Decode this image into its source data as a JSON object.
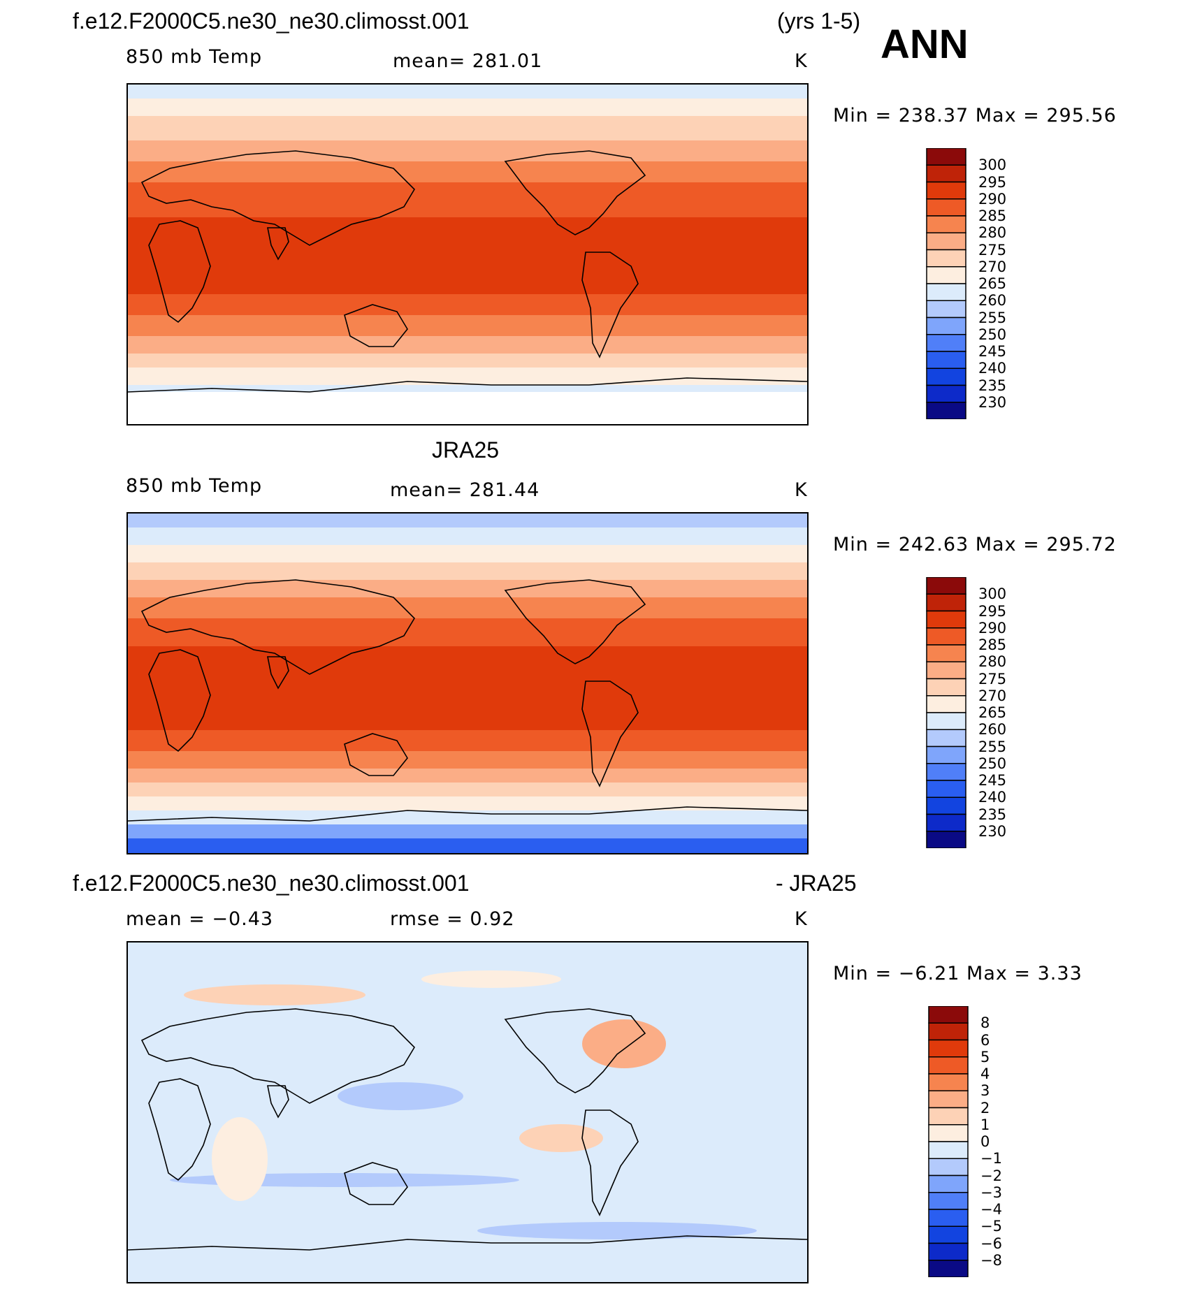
{
  "season": "ANN",
  "colors": {
    "abs": [
      "#0a0a85",
      "#0d2ac9",
      "#1244e0",
      "#2a5ef0",
      "#507ff8",
      "#7fa5fb",
      "#b3cafc",
      "#dcebfb",
      "#fdeee0",
      "#fdd2b6",
      "#fbad86",
      "#f6844f",
      "#ee5a26",
      "#e03a0b",
      "#bf2308",
      "#8b0a0a"
    ],
    "diff": [
      "#0a0a85",
      "#0d2ac9",
      "#1244e0",
      "#2a5ef0",
      "#507ff8",
      "#7fa5fb",
      "#b3cafc",
      "#dcebfb",
      "#fdeee0",
      "#fdd2b6",
      "#fbad86",
      "#f6844f",
      "#ee5a26",
      "#e03a0b",
      "#bf2308",
      "#8b0a0a"
    ]
  },
  "panels": [
    {
      "title_left": "f.e12.F2000C5.ne30_ne30.climosst.001",
      "title_right": "(yrs 1-5)",
      "variable": "850 mb Temp",
      "stat": "mean=  281.01",
      "units": "K",
      "minmax": "Min  =  238.37  Max  =  295.56",
      "labels": [
        "300",
        "295",
        "290",
        "285",
        "280",
        "275",
        "270",
        "265",
        "260",
        "255",
        "250",
        "245",
        "240",
        "235",
        "230"
      ],
      "kind": "model"
    },
    {
      "title_left": "",
      "title_center": "JRA25",
      "variable": "850 mb Temp",
      "stat": "mean=  281.44",
      "units": "K",
      "minmax": "Min  =  242.63  Max  =  295.72",
      "labels": [
        "300",
        "295",
        "290",
        "285",
        "280",
        "275",
        "270",
        "265",
        "260",
        "255",
        "250",
        "245",
        "240",
        "235",
        "230"
      ],
      "kind": "obs"
    },
    {
      "title_left": "f.e12.F2000C5.ne30_ne30.climosst.001",
      "title_right": "- JRA25",
      "variable": "mean  =   −0.43",
      "stat": "rmse  =     0.92",
      "units": "K",
      "minmax": "Min  =    −6.21  Max  =      3.33",
      "labels": [
        "8",
        "6",
        "5",
        "4",
        "3",
        "2",
        "1",
        "0",
        "−1",
        "−2",
        "−3",
        "−4",
        "−5",
        "−6",
        "−8"
      ],
      "kind": "diff"
    }
  ]
}
